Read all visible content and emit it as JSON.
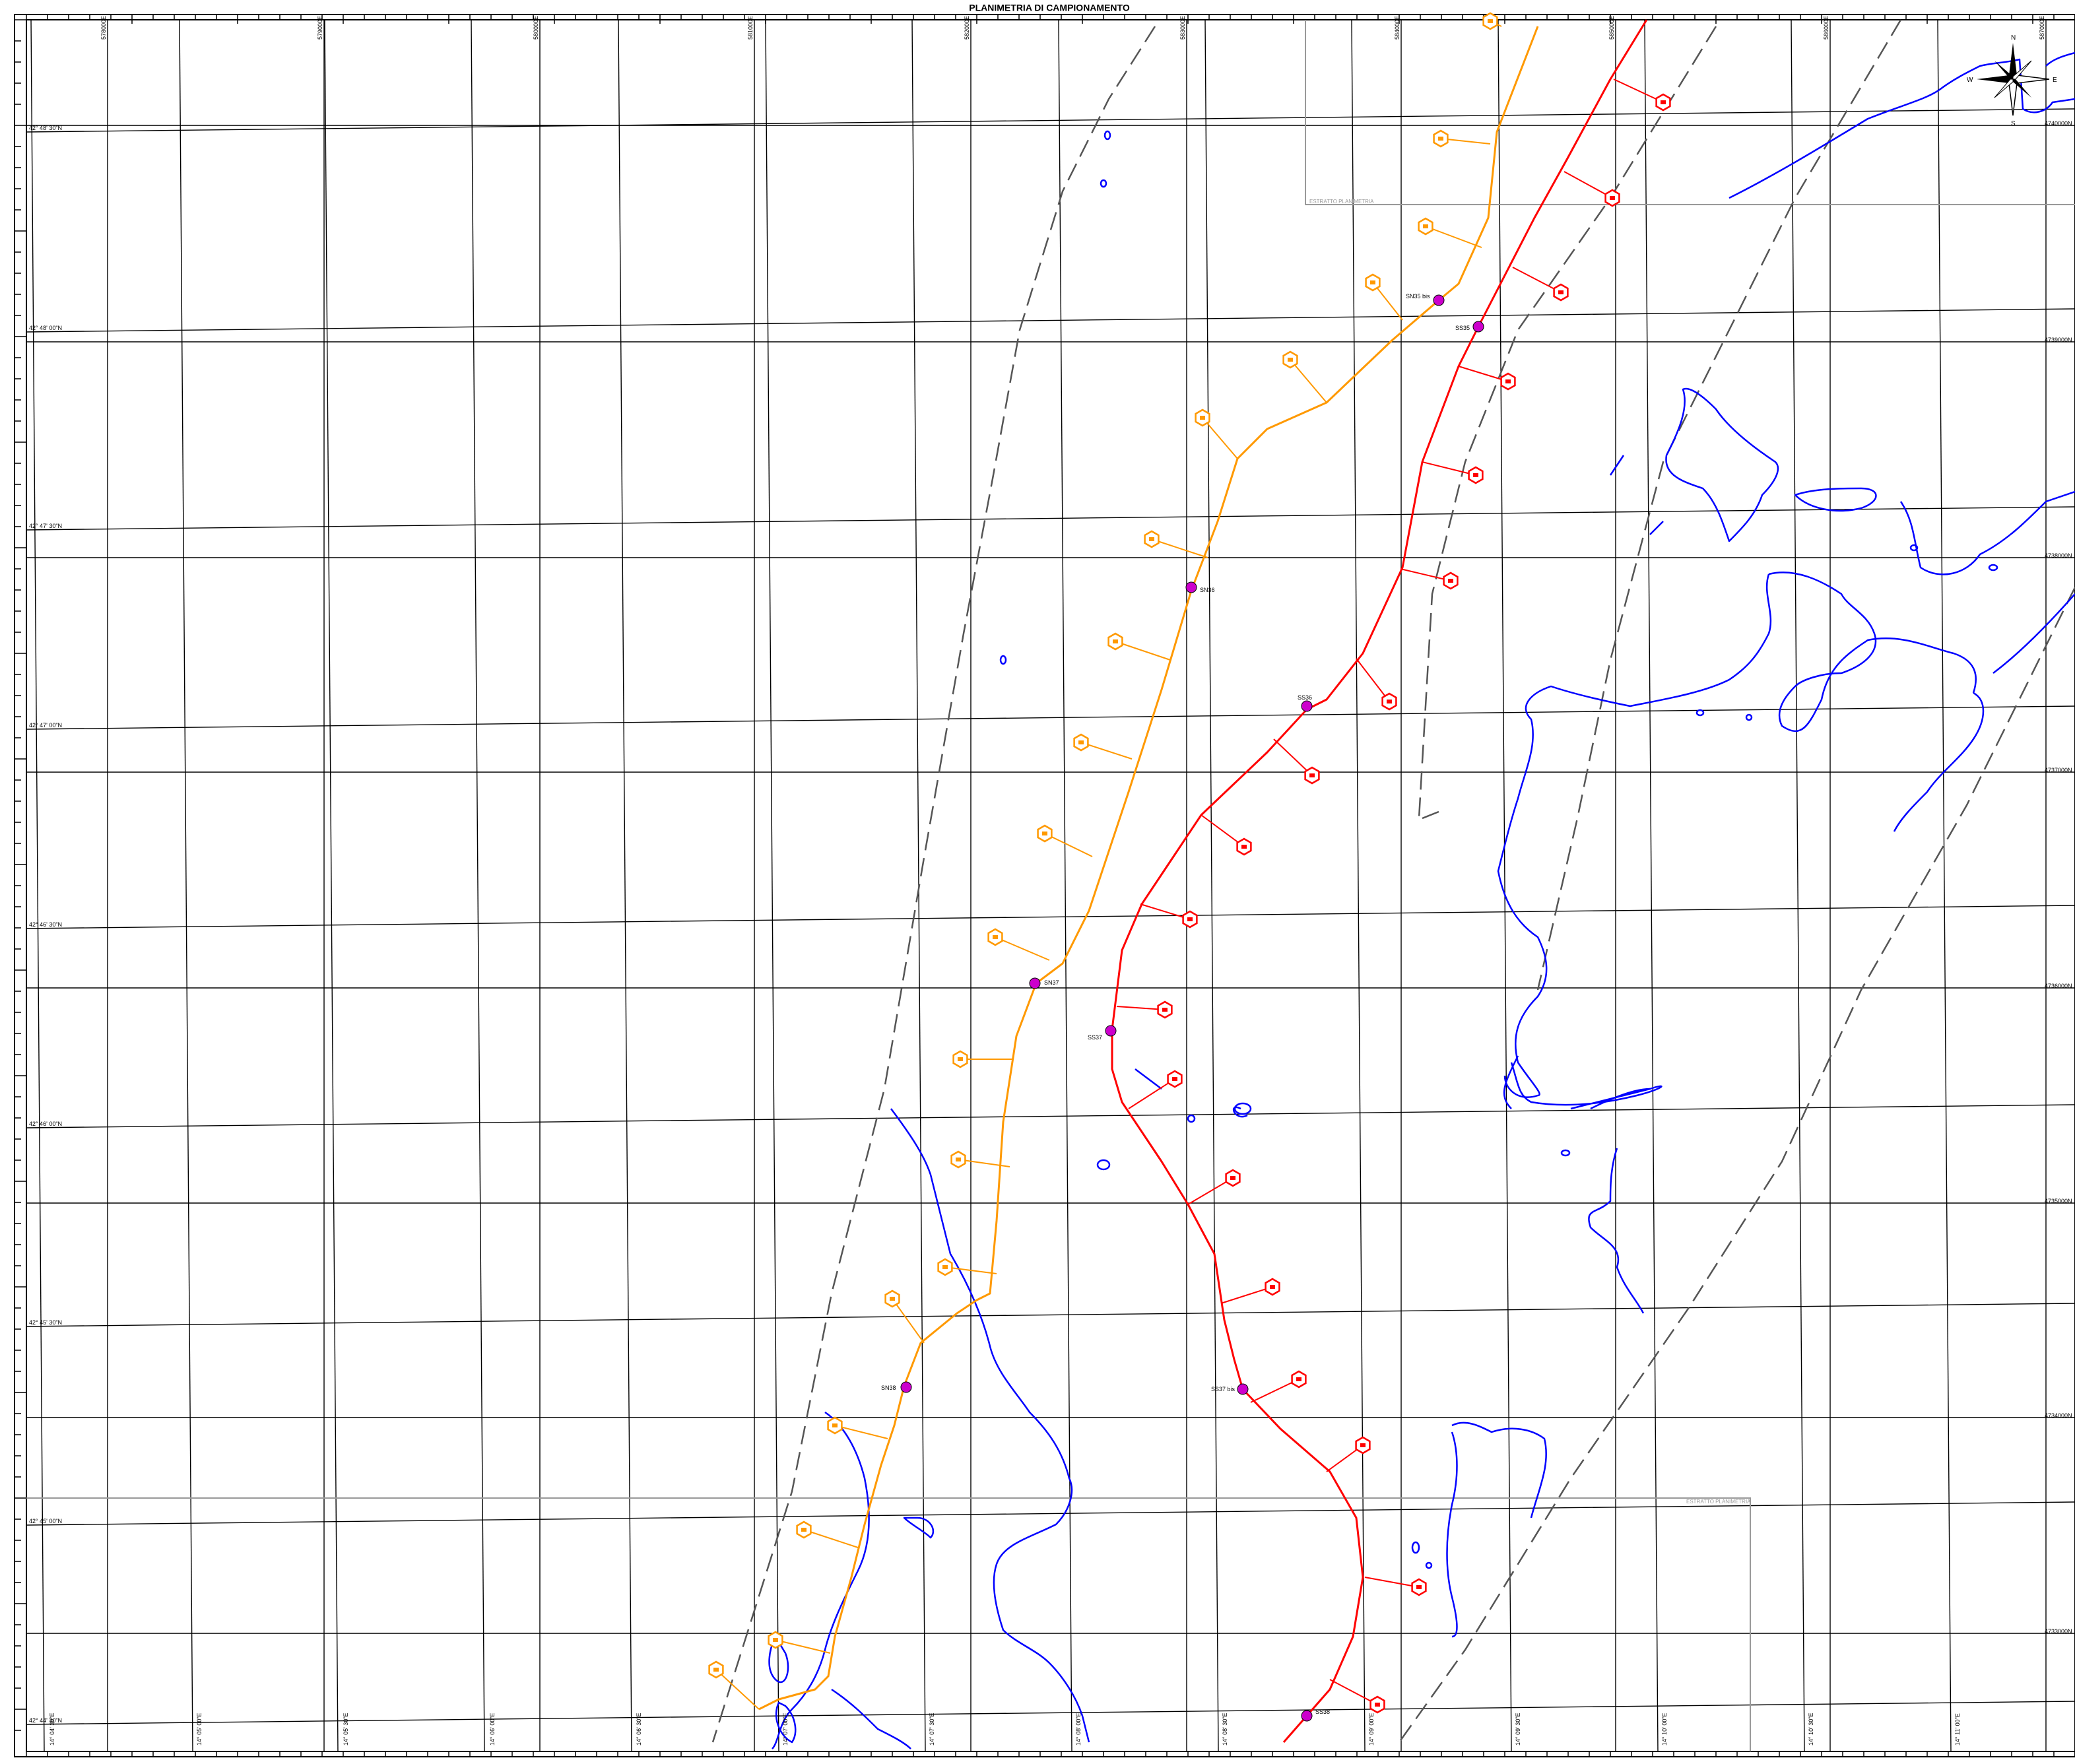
{
  "map": {
    "title": "PLANIMETRIA DI CAMPIONAMENTO",
    "compass": {
      "n": "N",
      "s": "S",
      "e": "E",
      "w": "W"
    },
    "colors": {
      "orange_line": "#ff9900",
      "red_line": "#ff0000",
      "coast": "#0000ff",
      "grid": "#000000",
      "dashed": "#555555",
      "station": "#cc00cc"
    },
    "lat_labels": [
      "42° 48' 30\"N",
      "42° 48' 00\"N",
      "42° 47' 30\"N",
      "42° 47' 00\"N",
      "42° 46' 30\"N",
      "42° 46' 00\"N",
      "42° 45' 30\"N",
      "42° 45' 00\"N",
      "42° 44' 30\"N"
    ],
    "easting_labels_top": [
      "578000E",
      "579000E",
      "580000E",
      "581000E",
      "582000E",
      "583000E",
      "584000E",
      "585000E",
      "586000E",
      "587000E"
    ],
    "northing_labels_right": [
      "4740000N",
      "4739000N",
      "4738000N",
      "4737000N",
      "4736000N",
      "4735000N",
      "4734000N",
      "4733000N"
    ],
    "lon_labels_bottom": [
      "14° 04' 30\"E",
      "14° 05' 00\"E",
      "14° 05' 30\"E",
      "14° 06' 00\"E",
      "14° 06' 30\"E",
      "14° 07' 00\"E",
      "14° 07' 30\"E",
      "14° 08' 00\"E",
      "14° 08' 30\"E",
      "14° 09' 00\"E",
      "14° 09' 30\"E",
      "14° 10' 00\"E",
      "14° 10' 30\"E",
      "14° 11' 00\"E"
    ],
    "stations": {
      "sn35bis": "SN35 bis",
      "ss35": "SS35",
      "sn36": "SN36",
      "ss36": "SS36",
      "sn37": "SN37",
      "ss37": "SS37",
      "ss37bis": "SS37 bis",
      "sn38": "SN38",
      "ss38": "SS38"
    },
    "inset_label_top": "ESTRATTO PLANIMETRIA",
    "inset_label_bottom": "ESTRATTO PLANIMETRIA"
  }
}
